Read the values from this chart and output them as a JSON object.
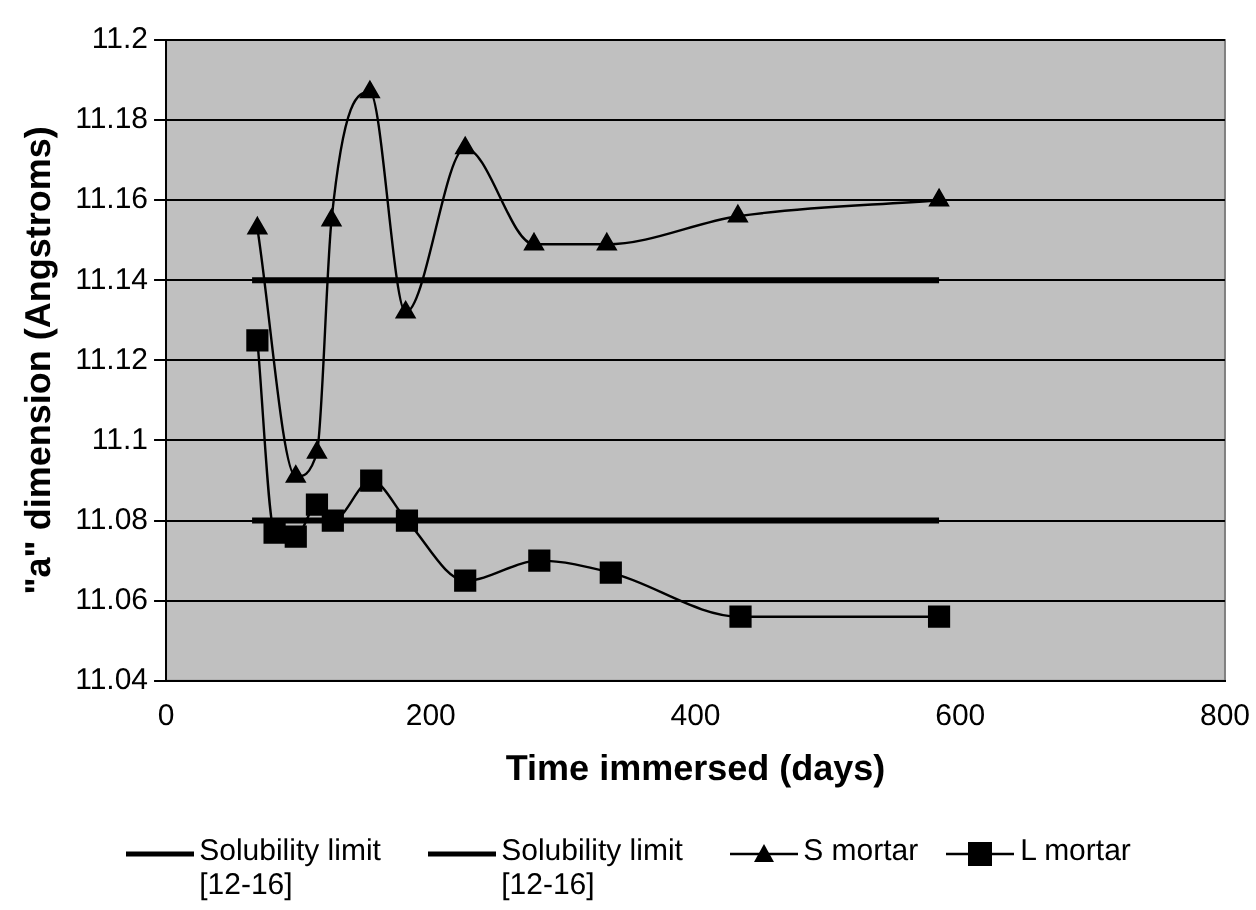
{
  "chart_data": {
    "type": "line",
    "xlabel": "Time immersed (days)",
    "ylabel": "\"a\" dimension (Angstroms)",
    "xlim": [
      0,
      800
    ],
    "xticks": [
      0,
      200,
      400,
      600,
      800
    ],
    "ylim": [
      11.04,
      11.2
    ],
    "yticks": [
      11.04,
      11.06,
      11.08,
      11.1,
      11.12,
      11.14,
      11.16,
      11.18,
      11.2
    ],
    "grid": "y",
    "legend": "bottom",
    "series": [
      {
        "name": "Solubility limit [12-16]",
        "color": "#000000",
        "marker": "none",
        "x": [
          65,
          584
        ],
        "values": [
          11.14,
          11.14
        ]
      },
      {
        "name": "Solubility limit [12-16]",
        "color": "#000000",
        "marker": "none",
        "x": [
          65,
          584
        ],
        "values": [
          11.08,
          11.08
        ]
      },
      {
        "name": "S mortar",
        "color": "#000000",
        "marker": "triangle",
        "x": [
          69,
          98,
          114,
          125,
          154,
          181,
          226,
          278,
          333,
          432,
          584
        ],
        "values": [
          11.153,
          11.091,
          11.097,
          11.155,
          11.187,
          11.132,
          11.173,
          11.149,
          11.149,
          11.156,
          11.16
        ]
      },
      {
        "name": "L mortar",
        "color": "#000000",
        "marker": "square",
        "x": [
          69,
          82,
          98,
          114,
          126,
          155,
          182,
          226,
          282,
          336,
          434,
          584
        ],
        "values": [
          11.125,
          11.077,
          11.076,
          11.084,
          11.08,
          11.09,
          11.08,
          11.065,
          11.07,
          11.067,
          11.056,
          11.056
        ]
      }
    ]
  }
}
